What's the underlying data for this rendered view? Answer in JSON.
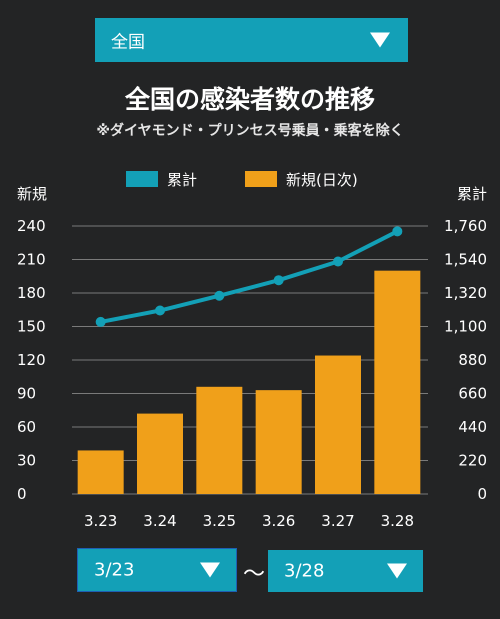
{
  "controls": {
    "region": "全国",
    "start_date": "3/23",
    "end_date": "3/28",
    "range_separator": "〜"
  },
  "colors": {
    "background": "#232425",
    "accent": "#13a0b7",
    "bar": "#f0a01a",
    "line": "#13a0b7",
    "grid": "#7a7a7a"
  },
  "chart_data": {
    "type": "bar",
    "title": "全国の感染者数の推移",
    "subtitle": "※ダイヤモンド・プリンセス号乗員・乗客を除く",
    "categories": [
      "3.23",
      "3.24",
      "3.25",
      "3.26",
      "3.27",
      "3.28"
    ],
    "series": [
      {
        "name": "累計",
        "type": "line",
        "axis": "right",
        "color": "#13a0b7",
        "values": [
          1130,
          1205,
          1302,
          1404,
          1527,
          1725
        ]
      },
      {
        "name": "新規(日次)",
        "type": "bar",
        "axis": "left",
        "color": "#f0a01a",
        "values": [
          39,
          72,
          96,
          93,
          124,
          200
        ]
      }
    ],
    "ylabel_left": "新規",
    "ylabel_right": "累計",
    "ylim_left": [
      0,
      240
    ],
    "ylim_right": [
      0,
      1760
    ],
    "yticks_left": [
      "0",
      "30",
      "60",
      "90",
      "120",
      "150",
      "180",
      "210",
      "240"
    ],
    "yticks_right": [
      "0",
      "220",
      "440",
      "660",
      "880",
      "1,100",
      "1,320",
      "1,540",
      "1,760"
    ],
    "grid": true,
    "legend": "top-center"
  }
}
